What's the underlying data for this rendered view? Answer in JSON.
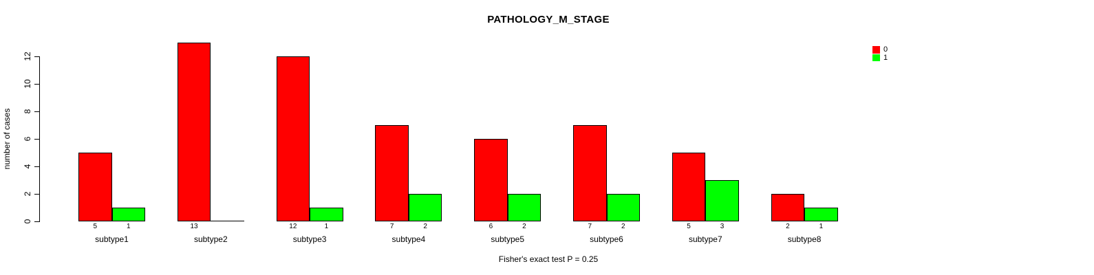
{
  "chart_data": {
    "type": "bar",
    "title": "PATHOLOGY_M_STAGE",
    "ylabel": "number of cases",
    "xlabel": "",
    "categories": [
      "subtype1",
      "subtype2",
      "subtype3",
      "subtype4",
      "subtype5",
      "subtype6",
      "subtype7",
      "subtype8"
    ],
    "series": [
      {
        "name": "0",
        "color": "#ff0000",
        "values": [
          5,
          13,
          12,
          7,
          6,
          7,
          5,
          2
        ]
      },
      {
        "name": "1",
        "color": "#00ff00",
        "values": [
          1,
          0,
          1,
          2,
          2,
          2,
          3,
          1
        ]
      }
    ],
    "yticks": [
      0,
      2,
      4,
      6,
      8,
      10,
      12
    ],
    "ylim": [
      0,
      13
    ],
    "grid": false,
    "legend_position": "top-right",
    "bar_value_labels": "each bar's count printed beneath it; zero-height bars drawn as a flat line with no number",
    "annotation": "Fisher's exact test P = 0.25"
  },
  "colors": {
    "bar_series_0": "#ff0000",
    "bar_series_1": "#00ff00",
    "axis": "#000000",
    "background": "#ffffff"
  }
}
